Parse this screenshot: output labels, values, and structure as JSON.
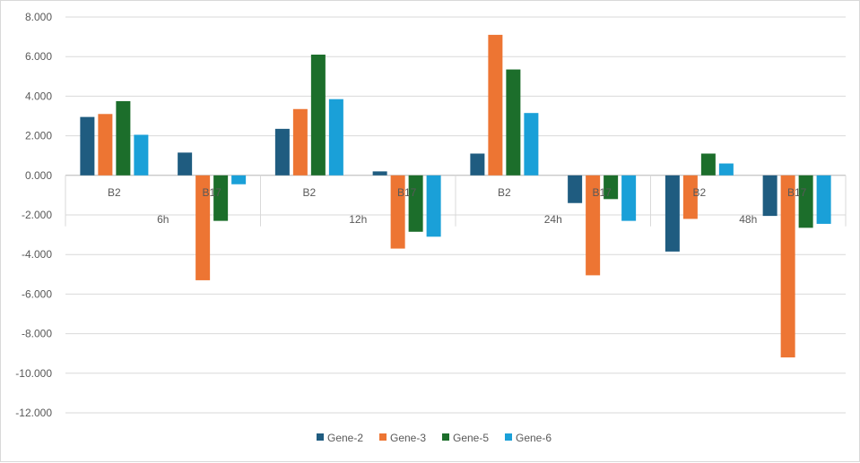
{
  "chart_data": {
    "type": "bar",
    "groups": [
      "6h",
      "12h",
      "24h",
      "48h"
    ],
    "subcategories": [
      "B2",
      "B17"
    ],
    "categories": [
      "6h B2",
      "6h B17",
      "12h B2",
      "12h B17",
      "24h B2",
      "24h B17",
      "48h B2",
      "48h B17"
    ],
    "series": [
      {
        "name": "Gene-2",
        "color": "#1f5c80",
        "values": [
          2.95,
          1.15,
          2.35,
          0.2,
          1.1,
          -1.4,
          -3.85,
          -2.05
        ]
      },
      {
        "name": "Gene-3",
        "color": "#ed7533",
        "values": [
          3.1,
          -5.3,
          3.35,
          -3.7,
          7.1,
          -5.05,
          -2.2,
          -9.2
        ]
      },
      {
        "name": "Gene-5",
        "color": "#1c6e2b",
        "values": [
          3.75,
          -2.3,
          6.1,
          -2.85,
          5.35,
          -1.2,
          1.1,
          -2.65
        ]
      },
      {
        "name": "Gene-6",
        "color": "#1aa0d8",
        "values": [
          2.05,
          -0.45,
          3.85,
          -3.1,
          3.15,
          -2.3,
          0.6,
          -2.45
        ]
      }
    ],
    "yticks": [
      "8.000",
      "6.000",
      "4.000",
      "2.000",
      "0.000",
      "-2.000",
      "-4.000",
      "-6.000",
      "-8.000",
      "-10.000",
      "-12.000"
    ],
    "ylim": [
      -12,
      8
    ],
    "grid": true,
    "legend": "bottom",
    "title": "",
    "xlabel": "",
    "ylabel": ""
  }
}
